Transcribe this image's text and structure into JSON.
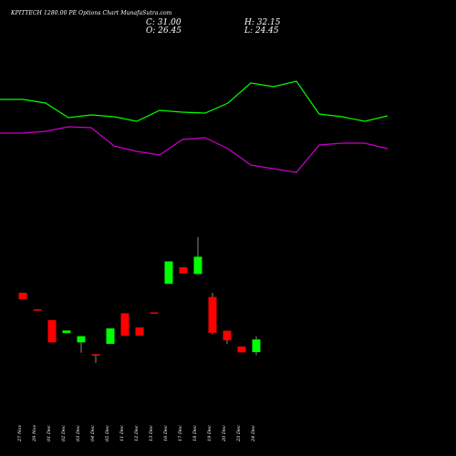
{
  "header": {
    "title": "KPITTECH 1280.00 PE Options  Chart MunafaSutra.com",
    "close_text": "C: 31.00",
    "open_text": "O: 26.45",
    "high_text": "H: 32.15",
    "low_text": "L: 24.45"
  },
  "chart_data": {
    "type": "candlestick",
    "background": "#000000",
    "up_color": "#00ff00",
    "down_color": "#ff0000",
    "categories": [
      "27 Nov",
      "29 Nov",
      "01 Dec",
      "02 Dec",
      "03 Dec",
      "04 Dec",
      "05 Dec",
      "11 Dec",
      "12 Dec",
      "13 Dec",
      "16 Dec",
      "17 Dec",
      "18 Dec",
      "19 Dec",
      "20 Dec",
      "23 Dec",
      "24 Dec"
    ],
    "candles": [
      {
        "open": 42.0,
        "high": 42.0,
        "low": 39.5,
        "close": 39.5
      },
      {
        "open": 35.6,
        "high": 35.6,
        "low": 35.3,
        "close": 35.3
      },
      {
        "open": 31.4,
        "high": 31.4,
        "low": 22.8,
        "close": 22.8
      },
      {
        "open": 26.4,
        "high": 27.4,
        "low": 26.4,
        "close": 27.4
      },
      {
        "open": 22.8,
        "high": 25.2,
        "low": 18.8,
        "close": 25.2
      },
      {
        "open": 18.2,
        "high": 18.2,
        "low": 14.8,
        "close": 17.6
      },
      {
        "open": 22.2,
        "high": 28.2,
        "low": 22.2,
        "close": 28.2
      },
      {
        "open": 34.1,
        "high": 34.1,
        "low": 25.3,
        "close": 25.3
      },
      {
        "open": 28.6,
        "high": 28.6,
        "low": 25.4,
        "close": 25.4
      },
      {
        "open": 34.4,
        "high": 34.4,
        "low": 34.2,
        "close": 34.2
      },
      {
        "open": 45.5,
        "high": 54.2,
        "low": 45.5,
        "close": 54.2
      },
      {
        "open": 51.9,
        "high": 51.9,
        "low": 49.5,
        "close": 49.5
      },
      {
        "open": 49.3,
        "high": 63.6,
        "low": 49.3,
        "close": 56.0
      },
      {
        "open": 40.4,
        "high": 42.0,
        "low": 25.9,
        "close": 26.5
      },
      {
        "open": 27.3,
        "high": 27.3,
        "low": 22.1,
        "close": 23.6
      },
      {
        "open": 21.2,
        "high": 21.2,
        "low": 18.9,
        "close": 18.9
      },
      {
        "open": 19.0,
        "high": 25.1,
        "low": 17.8,
        "close": 23.9
      }
    ],
    "upper_line": {
      "color": "#00ff00",
      "values": [
        172,
        172,
        168,
        152,
        155,
        153,
        148,
        160,
        158,
        157,
        168,
        190,
        186,
        192,
        156,
        153,
        148,
        154
      ]
    },
    "lower_line": {
      "color": "#cc00cc",
      "values": [
        135,
        135,
        137,
        142,
        141,
        121,
        115,
        111,
        128,
        130,
        118,
        100,
        96,
        92,
        122,
        124,
        124,
        118
      ]
    }
  }
}
